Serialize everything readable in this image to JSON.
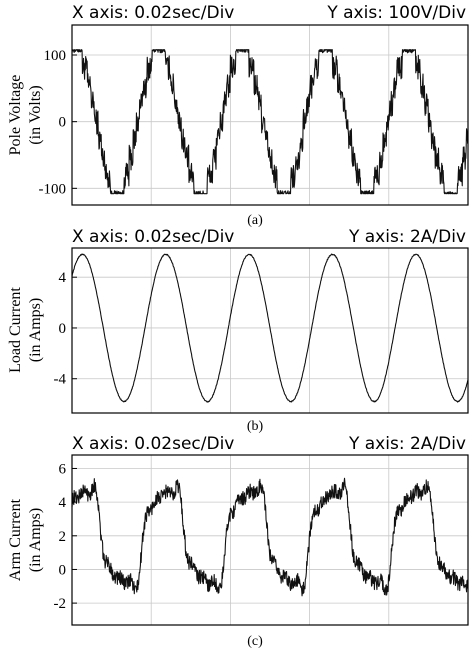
{
  "chart_data": [
    {
      "type": "line",
      "panel_id": "a",
      "caption": "(a)",
      "header_left": "X axis: 0.02sec/Div",
      "header_right": "Y axis: 100V/Div",
      "ylabel_line1": "Pole  Voltage",
      "ylabel_line2": "(in Volts)",
      "ytick_labels": [
        "100",
        "0",
        "-100"
      ],
      "yticks": [
        100,
        0,
        -100
      ],
      "ylim": [
        -125,
        145
      ],
      "xlim": [
        0,
        0.095
      ],
      "grid": true,
      "waveform": "staircase",
      "frequency_hz": 50,
      "amplitude": 108,
      "dc_offset": 0,
      "phase_deg": 75,
      "ripple": 0.35
    },
    {
      "type": "line",
      "panel_id": "b",
      "caption": "(b)",
      "header_left": "X axis: 0.02sec/Div",
      "header_right": "Y axis: 2A/Div",
      "ylabel_line1": "Load Current",
      "ylabel_line2": "(in Amps)",
      "ytick_labels": [
        "4",
        "0",
        "-4"
      ],
      "yticks": [
        4,
        0,
        -4
      ],
      "ylim": [
        -6.7,
        6.3
      ],
      "xlim": [
        0,
        0.095
      ],
      "grid": true,
      "waveform": "sine",
      "frequency_hz": 50,
      "amplitude": 5.8,
      "dc_offset": 0,
      "phase_deg": 45,
      "ripple": 0.08
    },
    {
      "type": "line",
      "panel_id": "c",
      "caption": "(c)",
      "header_left": "X axis: 0.02sec/Div",
      "header_right": "Y axis: 2A/Div",
      "ylabel_line1": "Arm Current",
      "ylabel_line2": "(in Amps)",
      "ytick_labels": [
        "6",
        "4",
        "2",
        "0",
        "-2"
      ],
      "yticks": [
        6,
        4,
        2,
        0,
        -2
      ],
      "ylim": [
        -3.3,
        6.8
      ],
      "xlim": [
        0,
        0.095
      ],
      "grid": true,
      "waveform": "noisy",
      "frequency_hz": 50,
      "amplitude": 3.9,
      "dc_offset": 1.9,
      "phase_deg": 45,
      "ripple": 0.55
    }
  ]
}
